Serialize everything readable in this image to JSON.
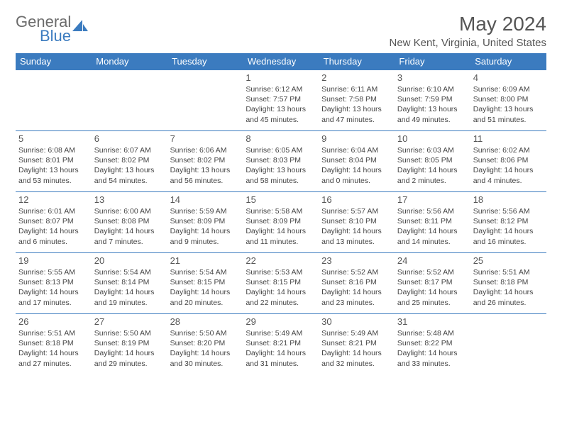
{
  "logo": {
    "part1": "General",
    "part2": "Blue"
  },
  "title": "May 2024",
  "location": "New Kent, Virginia, United States",
  "header_bg": "#3b7bbf",
  "header_text": "#ffffff",
  "border_color": "#3b7bbf",
  "weekdays": [
    "Sunday",
    "Monday",
    "Tuesday",
    "Wednesday",
    "Thursday",
    "Friday",
    "Saturday"
  ],
  "weeks": [
    [
      null,
      null,
      null,
      {
        "n": "1",
        "sr": "6:12 AM",
        "ss": "7:57 PM",
        "dl": "13 hours and 45 minutes."
      },
      {
        "n": "2",
        "sr": "6:11 AM",
        "ss": "7:58 PM",
        "dl": "13 hours and 47 minutes."
      },
      {
        "n": "3",
        "sr": "6:10 AM",
        "ss": "7:59 PM",
        "dl": "13 hours and 49 minutes."
      },
      {
        "n": "4",
        "sr": "6:09 AM",
        "ss": "8:00 PM",
        "dl": "13 hours and 51 minutes."
      }
    ],
    [
      {
        "n": "5",
        "sr": "6:08 AM",
        "ss": "8:01 PM",
        "dl": "13 hours and 53 minutes."
      },
      {
        "n": "6",
        "sr": "6:07 AM",
        "ss": "8:02 PM",
        "dl": "13 hours and 54 minutes."
      },
      {
        "n": "7",
        "sr": "6:06 AM",
        "ss": "8:02 PM",
        "dl": "13 hours and 56 minutes."
      },
      {
        "n": "8",
        "sr": "6:05 AM",
        "ss": "8:03 PM",
        "dl": "13 hours and 58 minutes."
      },
      {
        "n": "9",
        "sr": "6:04 AM",
        "ss": "8:04 PM",
        "dl": "14 hours and 0 minutes."
      },
      {
        "n": "10",
        "sr": "6:03 AM",
        "ss": "8:05 PM",
        "dl": "14 hours and 2 minutes."
      },
      {
        "n": "11",
        "sr": "6:02 AM",
        "ss": "8:06 PM",
        "dl": "14 hours and 4 minutes."
      }
    ],
    [
      {
        "n": "12",
        "sr": "6:01 AM",
        "ss": "8:07 PM",
        "dl": "14 hours and 6 minutes."
      },
      {
        "n": "13",
        "sr": "6:00 AM",
        "ss": "8:08 PM",
        "dl": "14 hours and 7 minutes."
      },
      {
        "n": "14",
        "sr": "5:59 AM",
        "ss": "8:09 PM",
        "dl": "14 hours and 9 minutes."
      },
      {
        "n": "15",
        "sr": "5:58 AM",
        "ss": "8:09 PM",
        "dl": "14 hours and 11 minutes."
      },
      {
        "n": "16",
        "sr": "5:57 AM",
        "ss": "8:10 PM",
        "dl": "14 hours and 13 minutes."
      },
      {
        "n": "17",
        "sr": "5:56 AM",
        "ss": "8:11 PM",
        "dl": "14 hours and 14 minutes."
      },
      {
        "n": "18",
        "sr": "5:56 AM",
        "ss": "8:12 PM",
        "dl": "14 hours and 16 minutes."
      }
    ],
    [
      {
        "n": "19",
        "sr": "5:55 AM",
        "ss": "8:13 PM",
        "dl": "14 hours and 17 minutes."
      },
      {
        "n": "20",
        "sr": "5:54 AM",
        "ss": "8:14 PM",
        "dl": "14 hours and 19 minutes."
      },
      {
        "n": "21",
        "sr": "5:54 AM",
        "ss": "8:15 PM",
        "dl": "14 hours and 20 minutes."
      },
      {
        "n": "22",
        "sr": "5:53 AM",
        "ss": "8:15 PM",
        "dl": "14 hours and 22 minutes."
      },
      {
        "n": "23",
        "sr": "5:52 AM",
        "ss": "8:16 PM",
        "dl": "14 hours and 23 minutes."
      },
      {
        "n": "24",
        "sr": "5:52 AM",
        "ss": "8:17 PM",
        "dl": "14 hours and 25 minutes."
      },
      {
        "n": "25",
        "sr": "5:51 AM",
        "ss": "8:18 PM",
        "dl": "14 hours and 26 minutes."
      }
    ],
    [
      {
        "n": "26",
        "sr": "5:51 AM",
        "ss": "8:18 PM",
        "dl": "14 hours and 27 minutes."
      },
      {
        "n": "27",
        "sr": "5:50 AM",
        "ss": "8:19 PM",
        "dl": "14 hours and 29 minutes."
      },
      {
        "n": "28",
        "sr": "5:50 AM",
        "ss": "8:20 PM",
        "dl": "14 hours and 30 minutes."
      },
      {
        "n": "29",
        "sr": "5:49 AM",
        "ss": "8:21 PM",
        "dl": "14 hours and 31 minutes."
      },
      {
        "n": "30",
        "sr": "5:49 AM",
        "ss": "8:21 PM",
        "dl": "14 hours and 32 minutes."
      },
      {
        "n": "31",
        "sr": "5:48 AM",
        "ss": "8:22 PM",
        "dl": "14 hours and 33 minutes."
      },
      null
    ]
  ],
  "labels": {
    "sunrise": "Sunrise:",
    "sunset": "Sunset:",
    "daylight": "Daylight:"
  }
}
